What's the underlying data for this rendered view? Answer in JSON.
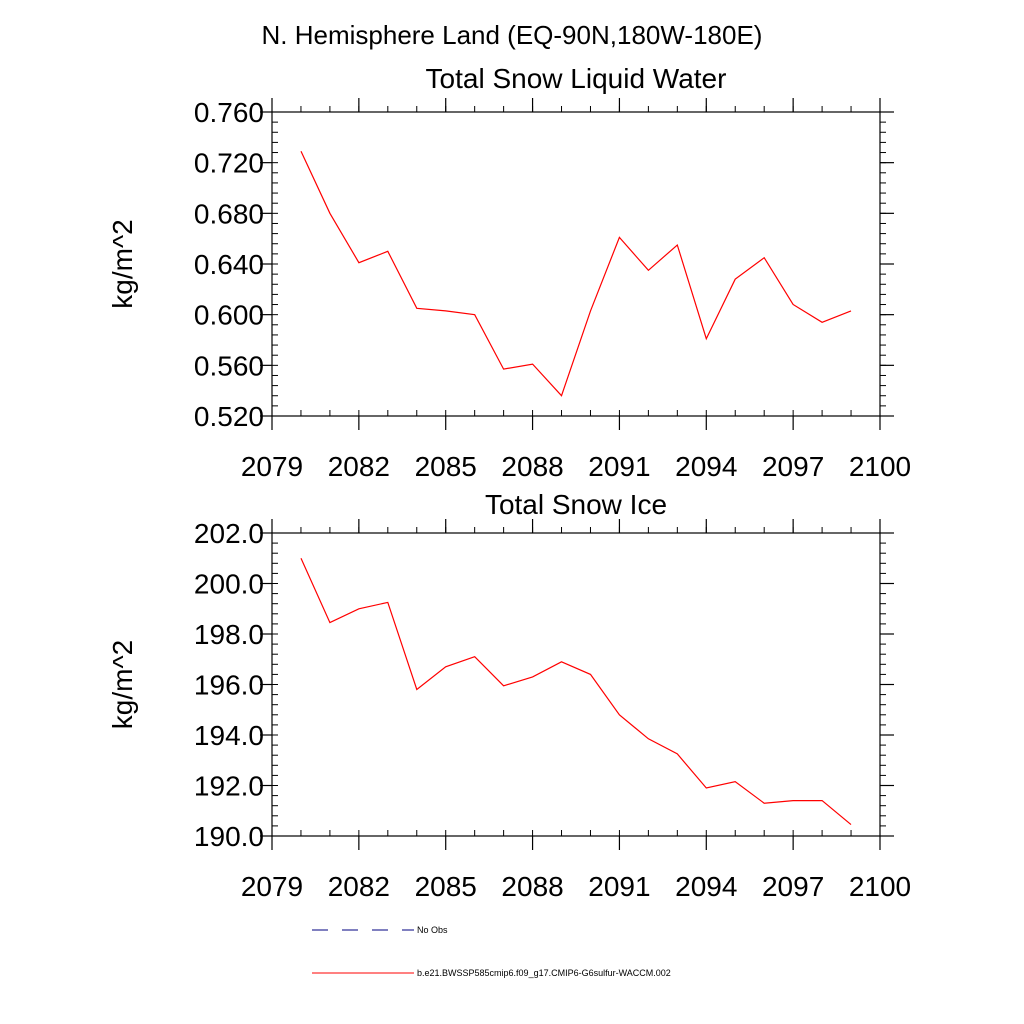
{
  "page_title": "N. Hemisphere Land (EQ-90N,180W-180E)",
  "legend": {
    "obs_label": "No Obs",
    "model_label": "b.e21.BWSSP585cmip6.f09_g17.CMIP6-G6sulfur-WACCM.002",
    "model_color": "#ff0000",
    "obs_color": "#000080"
  },
  "chart_data": [
    {
      "type": "line",
      "title": "Total Snow Liquid Water",
      "ylabel": "kg/m^2",
      "xlabel": "",
      "xlim": [
        2079,
        2100
      ],
      "ylim": [
        0.52,
        0.76
      ],
      "x_ticks": [
        2079,
        2082,
        2085,
        2088,
        2091,
        2094,
        2097,
        2100
      ],
      "y_ticks": [
        "0.520",
        "0.560",
        "0.600",
        "0.640",
        "0.680",
        "0.720",
        "0.760"
      ],
      "series": [
        {
          "name": "b.e21.BWSSP585cmip6.f09_g17.CMIP6-G6sulfur-WACCM.002",
          "color": "#ff0000",
          "x": [
            2080,
            2081,
            2082,
            2083,
            2084,
            2085,
            2086,
            2087,
            2088,
            2089,
            2090,
            2091,
            2092,
            2093,
            2094,
            2095,
            2096,
            2097,
            2098,
            2099
          ],
          "values": [
            0.729,
            0.68,
            0.641,
            0.65,
            0.605,
            0.603,
            0.6,
            0.557,
            0.561,
            0.536,
            0.603,
            0.661,
            0.635,
            0.655,
            0.581,
            0.628,
            0.645,
            0.608,
            0.594,
            0.603
          ]
        }
      ]
    },
    {
      "type": "line",
      "title": "Total Snow Ice",
      "ylabel": "kg/m^2",
      "xlabel": "",
      "xlim": [
        2079,
        2100
      ],
      "ylim": [
        190.0,
        202.0
      ],
      "x_ticks": [
        2079,
        2082,
        2085,
        2088,
        2091,
        2094,
        2097,
        2100
      ],
      "y_ticks": [
        "190.0",
        "192.0",
        "194.0",
        "196.0",
        "198.0",
        "200.0",
        "202.0"
      ],
      "series": [
        {
          "name": "b.e21.BWSSP585cmip6.f09_g17.CMIP6-G6sulfur-WACCM.002",
          "color": "#ff0000",
          "x": [
            2080,
            2081,
            2082,
            2083,
            2084,
            2085,
            2086,
            2087,
            2088,
            2089,
            2090,
            2091,
            2092,
            2093,
            2094,
            2095,
            2096,
            2097,
            2098,
            2099
          ],
          "values": [
            201.0,
            198.45,
            199.0,
            199.25,
            195.8,
            196.7,
            197.1,
            195.95,
            196.3,
            196.9,
            196.4,
            194.8,
            193.85,
            193.25,
            191.9,
            192.15,
            191.3,
            191.4,
            191.4,
            190.45
          ]
        }
      ]
    }
  ]
}
